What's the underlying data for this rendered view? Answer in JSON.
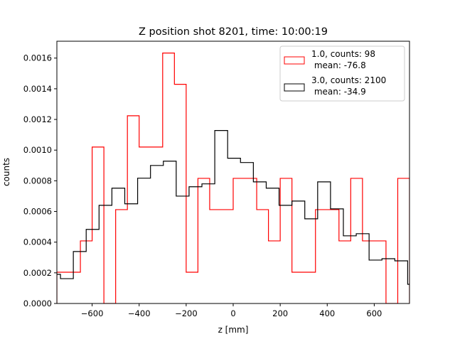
{
  "chart_data": {
    "type": "histogram-step",
    "title": "Z position shot 8201, time: 10:00:19",
    "xlabel": "z [mm]",
    "ylabel": "counts",
    "xlim": [
      -750,
      750
    ],
    "ylim": [
      0,
      0.00171
    ],
    "xticks": [
      -600,
      -400,
      -200,
      0,
      200,
      400,
      600
    ],
    "xtick_labels": [
      "−600",
      "−400",
      "−200",
      "0",
      "200",
      "400",
      "600"
    ],
    "yticks": [
      0,
      0.0002,
      0.0004,
      0.0006,
      0.0008,
      0.001,
      0.0012,
      0.0014,
      0.0016
    ],
    "ytick_labels": [
      "0.0000",
      "0.0002",
      "0.0004",
      "0.0006",
      "0.0008",
      "0.0010",
      "0.0012",
      "0.0014",
      "0.0016"
    ],
    "grid": false,
    "legend_position": "top-right",
    "series": [
      {
        "name": "1.0, counts: 98",
        "name_line2": " mean: -76.8",
        "color": "#ff0000",
        "bin_start": -750,
        "bin_width": 50,
        "values": [
          0.000204,
          0.000204,
          0.000408,
          0.00102,
          0,
          0.000612,
          0.001224,
          0.00102,
          0.00102,
          0.001633,
          0.001429,
          0.000204,
          0.000816,
          0.000612,
          0.000612,
          0.000816,
          0.000816,
          0.000612,
          0.000408,
          0.000816,
          0.000204,
          0.000204,
          0.000612,
          0.000612,
          0.000408,
          0.000816,
          0.000408,
          0.000408,
          0,
          0.000816
        ]
      },
      {
        "name": "3.0, counts: 2100",
        "name_line2": " mean: -34.9",
        "color": "#000000",
        "bin_start": -789.4,
        "bin_width": 54.7,
        "values": [
          0.00019,
          0.000162,
          0.000339,
          0.000483,
          0.00064,
          0.000752,
          0.00065,
          0.000817,
          0.0009,
          0.000928,
          0.0007,
          0.000761,
          0.00078,
          0.001128,
          0.000947,
          0.000919,
          0.000793,
          0.000752,
          0.00064,
          0.000668,
          0.000552,
          0.000793,
          0.000617,
          0.000441,
          0.000455,
          0.000283,
          0.000292,
          0.000278,
          0.000125
        ]
      }
    ]
  }
}
